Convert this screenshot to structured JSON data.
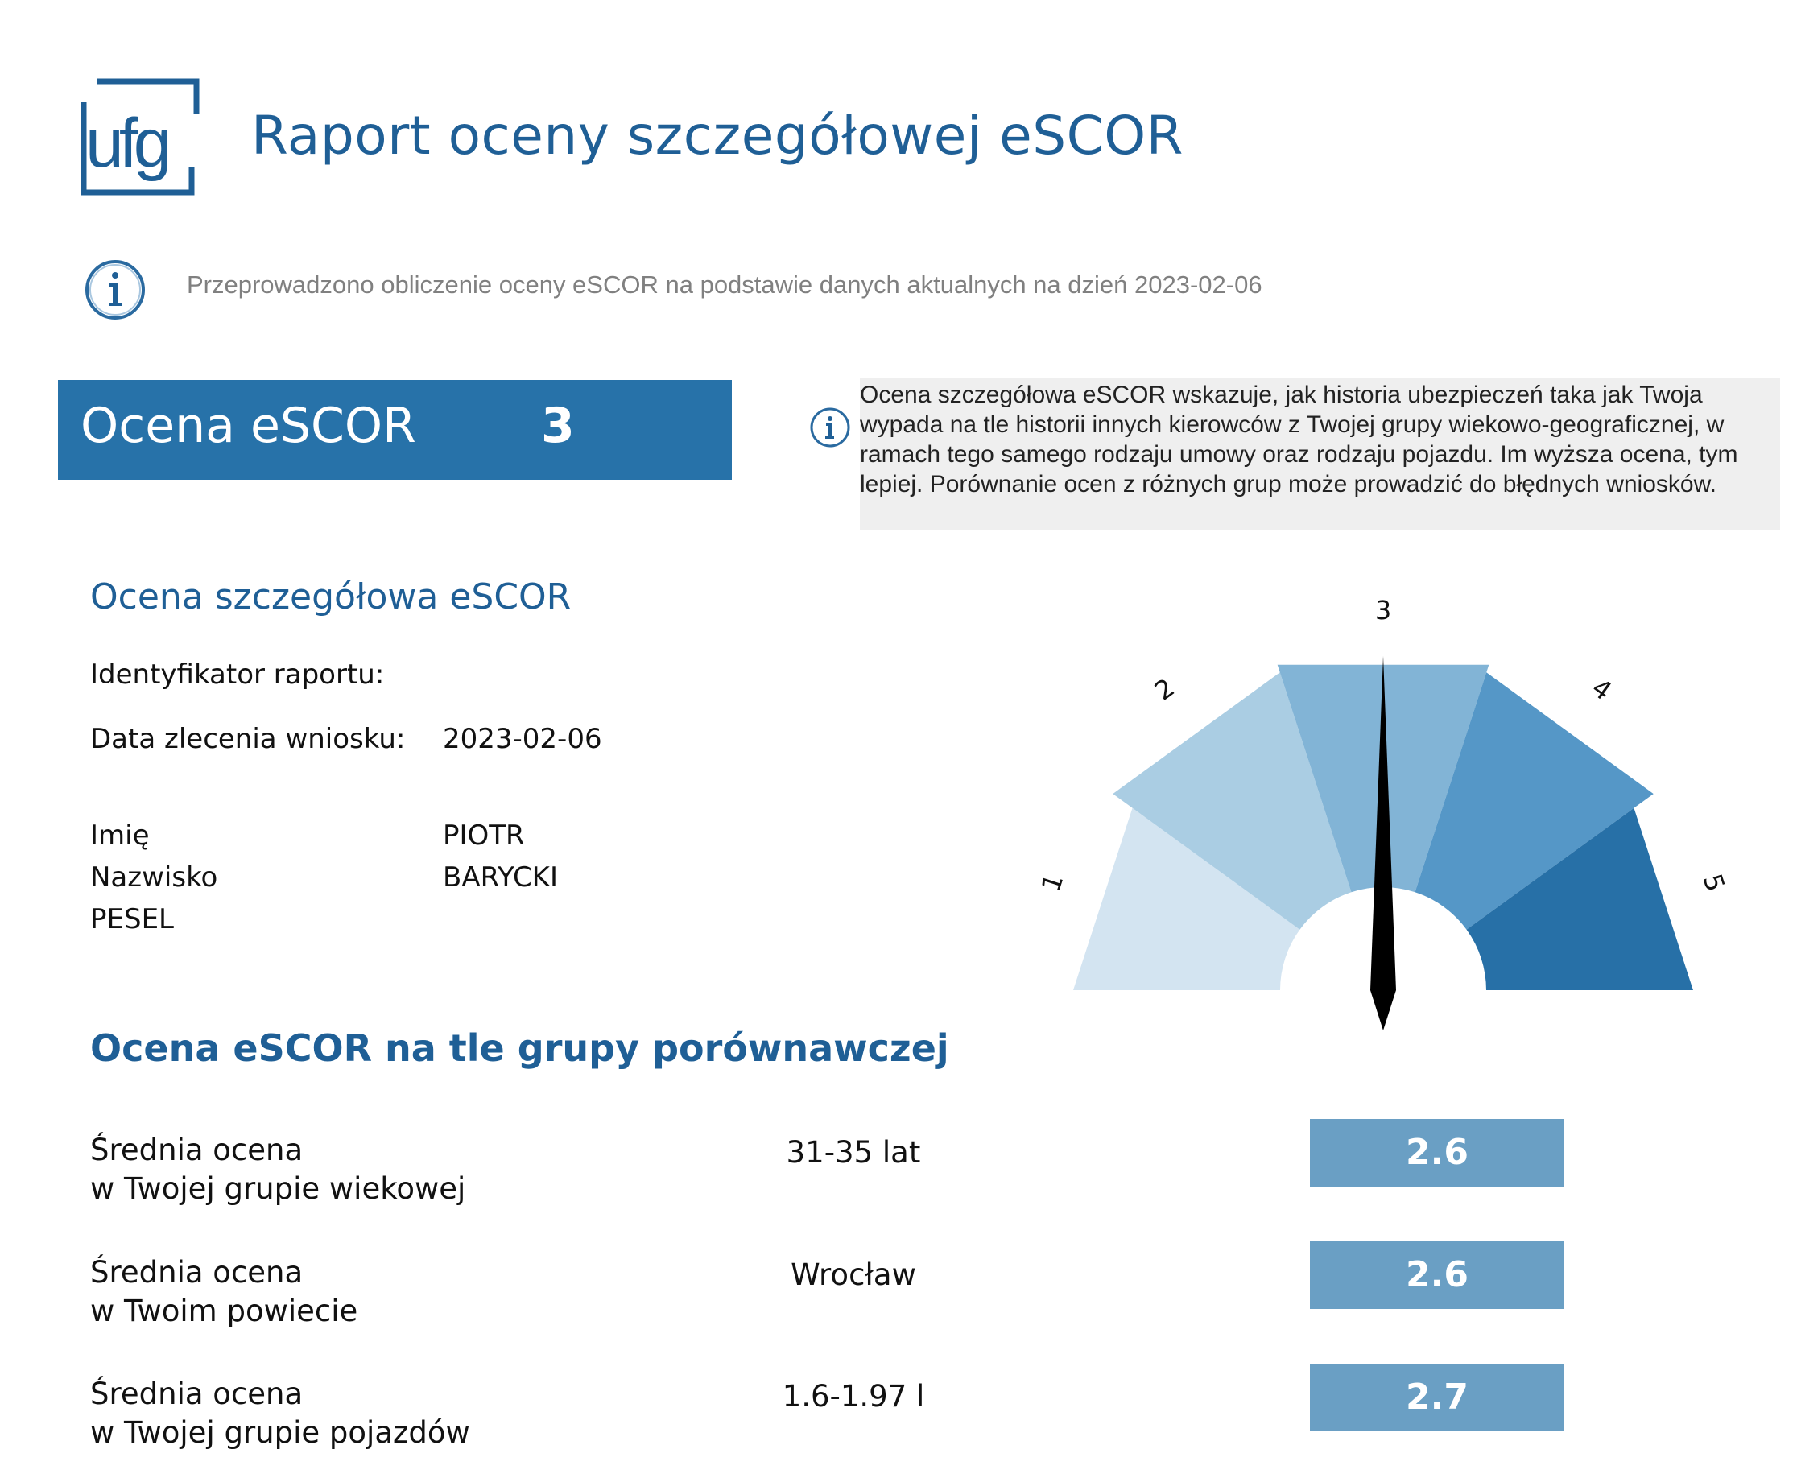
{
  "header": {
    "logo_text": "ufg",
    "title": "Raport oceny szczegółowej eSCOR"
  },
  "info_line": "Przeprowadzono obliczenie oceny eSCOR na podstawie danych aktualnych na dzień 2023-02-06",
  "score": {
    "label": "Ocena eSCOR",
    "value": "3"
  },
  "note": "Ocena szczegółowa eSCOR wskazuje, jak historia ubezpieczeń taka jak Twoja wypada na tle historii innych kierowców z Twojej grupy wiekowo-geograficznej, w ramach tego samego rodzaju umowy oraz rodzaju pojazdu. Im wyższa ocena, tym lepiej. Porównanie ocen z różnych grup może prowadzić do błędnych wniosków.",
  "details": {
    "heading": "Ocena szczegółowa eSCOR",
    "report_id_label": "Identyfikator raportu:",
    "report_id_value": "",
    "date_label": "Data zlecenia wniosku:",
    "date_value": "2023-02-06",
    "first_name_label": "Imię",
    "first_name_value": "PIOTR",
    "last_name_label": "Nazwisko",
    "last_name_value": "BARYCKI",
    "pesel_label": "PESEL",
    "pesel_value": ""
  },
  "gauge": {
    "labels": [
      "1",
      "2",
      "3",
      "4",
      "5"
    ],
    "value": 3,
    "min": 1,
    "max": 5,
    "segment_colors": [
      "#d3e4f1",
      "#aacde3",
      "#82b4d6",
      "#5597c7",
      "#2770a7"
    ],
    "needle_color": "#000000"
  },
  "comparison": {
    "heading": "Ocena eSCOR na tle grupy porównawczej",
    "rows": [
      {
        "label_line1": "Średnia ocena",
        "label_line2": "w Twojej grupie wiekowej",
        "group": "31-35 lat",
        "value": "2.6"
      },
      {
        "label_line1": "Średnia ocena",
        "label_line2": "w Twoim powiecie",
        "group": "Wrocław",
        "value": "2.6"
      },
      {
        "label_line1": "Średnia ocena",
        "label_line2": "w Twojej grupie pojazdów",
        "group": "1.6-1.97 l",
        "value": "2.7"
      }
    ]
  },
  "colors": {
    "brand_blue": "#1f5f96",
    "score_box": "#2772a9",
    "value_box": "#6a9fc4"
  }
}
